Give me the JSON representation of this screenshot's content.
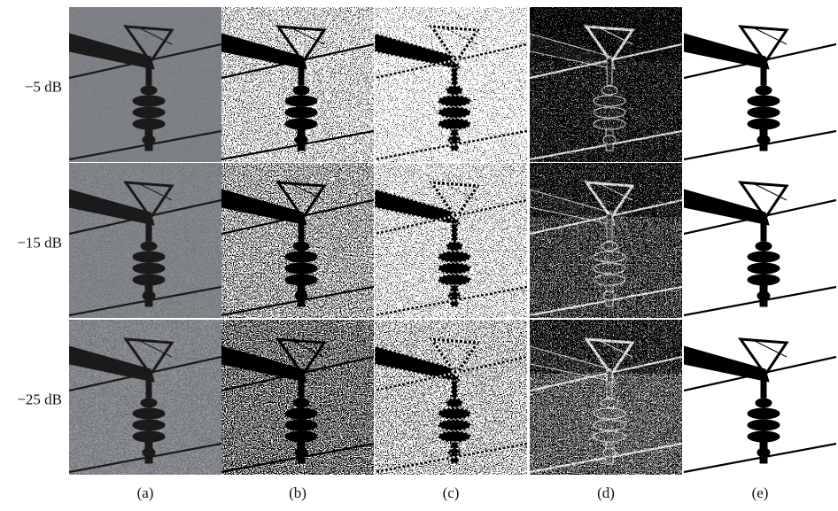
{
  "row_labels": [
    "−5 dB",
    "−15 dB",
    "−25 dB"
  ],
  "column_labels": [
    "(a)",
    "(b)",
    "(c)",
    "(d)",
    "(e)"
  ]
}
